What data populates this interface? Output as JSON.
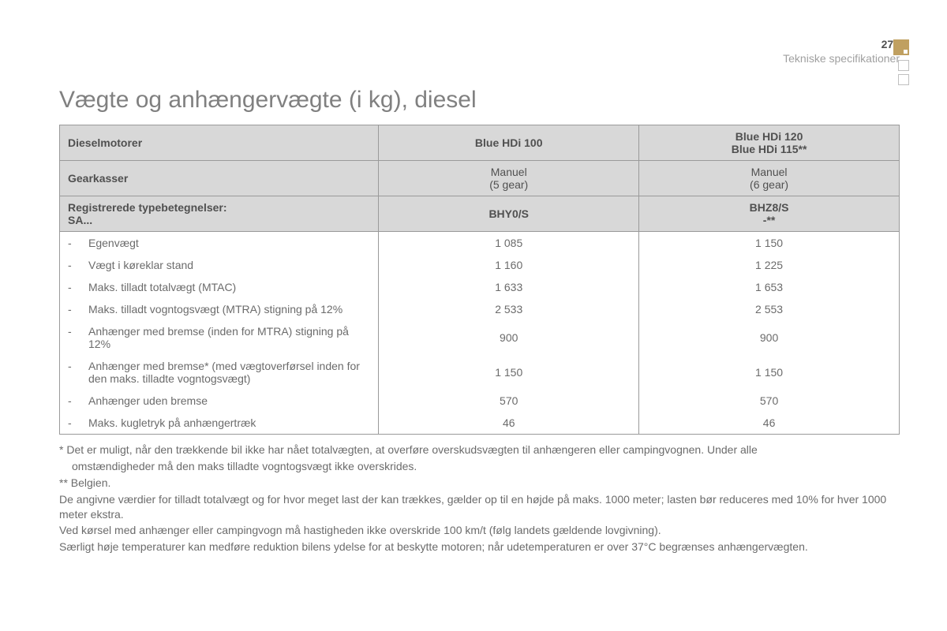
{
  "page": {
    "number": "271",
    "section": "Tekniske specifikationer"
  },
  "title": "Vægte og anhængervægte (i kg), diesel",
  "table": {
    "header": {
      "engines_label": "Dieselmotorer",
      "gearboxes_label": "Gearkasser",
      "type_label_line1": "Registrerede typebetegnelser:",
      "type_label_line2": "SA...",
      "col1": {
        "engine": "Blue HDi 100",
        "gearbox": "Manuel",
        "gearbox_sub": "(5 gear)",
        "type": "BHY0/S"
      },
      "col2": {
        "engine_line1": "Blue HDi 120",
        "engine_line2": "Blue HDi 115**",
        "gearbox": "Manuel",
        "gearbox_sub": "(6 gear)",
        "type_line1": "BHZ8/S",
        "type_line2": "-**"
      }
    },
    "rows": [
      {
        "label": "Egenvægt",
        "v1": "1 085",
        "v2": "1 150"
      },
      {
        "label": "Vægt i køreklar stand",
        "v1": "1 160",
        "v2": "1 225"
      },
      {
        "label": "Maks. tilladt totalvægt (MTAC)",
        "v1": "1 633",
        "v2": "1 653"
      },
      {
        "label": "Maks. tilladt vogntogsvægt (MTRA) stigning på 12%",
        "v1": "2 533",
        "v2": "2 553"
      },
      {
        "label": "Anhænger med bremse (inden for MTRA) stigning på 12%",
        "v1": "900",
        "v2": "900"
      },
      {
        "label": "Anhænger med bremse* (med vægtoverførsel inden for den maks. tilladte vogntogsvægt)",
        "v1": "1 150",
        "v2": "1 150"
      },
      {
        "label": "Anhænger uden bremse",
        "v1": "570",
        "v2": "570"
      },
      {
        "label": "Maks. kugletryk på anhængertræk",
        "v1": "46",
        "v2": "46"
      }
    ]
  },
  "footnotes": {
    "n1a": "* Det er muligt, når den trækkende bil ikke har nået totalvægten, at overføre overskudsvægten til anhængeren eller campingvognen. Under alle",
    "n1b": "omstændigheder må den maks tilladte vogntogsvægt ikke overskrides.",
    "n2": "** Belgien.",
    "n3": "De angivne værdier for tilladt totalvægt og for hvor meget last der kan trækkes, gælder op til en højde på maks. 1000 meter; lasten bør reduceres med 10% for hver 1000 meter ekstra.",
    "n4": "Ved kørsel med anhænger eller campingvogn må hastigheden ikke overskride 100 km/t (følg landets gældende lovgivning).",
    "n5": "Særligt høje temperaturer kan medføre reduktion bilens ydelse for at beskytte motoren; når udetemperaturen er over 37°C begrænses anhængervægten."
  },
  "styling": {
    "background": "#ffffff",
    "text_color": "#6b6b6b",
    "heading_color": "#808080",
    "header_bg": "#d8d8d8",
    "border_color": "#9a9a9a",
    "accent_color": "#c0a060",
    "title_fontsize": 30,
    "body_fontsize": 14
  }
}
